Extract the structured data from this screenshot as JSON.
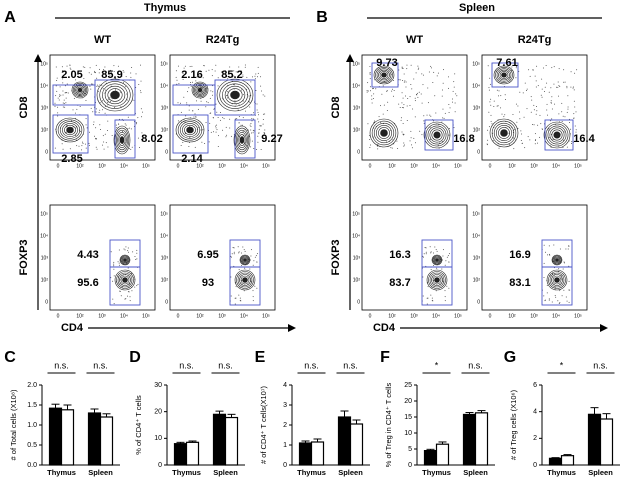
{
  "flow": {
    "axis_ticks": [
      "0",
      "10²",
      "10³",
      "10⁴",
      "10⁵"
    ],
    "x_label": "CD4",
    "y_labels": [
      "CD8",
      "FOXP3"
    ],
    "panels": [
      {
        "letter": "A",
        "tissue": "Thymus",
        "genotypes": [
          "WT",
          "R24Tg"
        ],
        "cd8_gates": [
          [
            2.05,
            85.9,
            2.85,
            8.02
          ],
          [
            2.16,
            85.2,
            2.14,
            9.27
          ]
        ],
        "foxp3_gates": [
          [
            4.43,
            95.6
          ],
          [
            6.95,
            93
          ]
        ]
      },
      {
        "letter": "B",
        "tissue": "Spleen",
        "genotypes": [
          "WT",
          "R24Tg"
        ],
        "cd8_gates": [
          [
            9.73,
            16.8
          ],
          [
            7.61,
            16.4
          ]
        ],
        "foxp3_gates": [
          [
            16.3,
            83.7
          ],
          [
            16.9,
            83.1
          ]
        ]
      }
    ]
  },
  "chart_data": [
    {
      "type": "bar",
      "panel": "C",
      "ylabel": "# of Total cells (X10⁸)",
      "categories": [
        "Thymus",
        "Spleen"
      ],
      "series": [
        {
          "color": "#000000",
          "values": [
            1.42,
            1.3
          ],
          "errors": [
            0.1,
            0.1
          ]
        },
        {
          "color": "#ffffff",
          "values": [
            1.38,
            1.2
          ],
          "errors": [
            0.12,
            0.08
          ]
        }
      ],
      "annotations": [
        "n.s.",
        "n.s."
      ],
      "ylim": [
        0,
        2
      ],
      "yticks": [
        {
          "value": 0,
          "label": "0.0"
        },
        {
          "value": 0.5,
          "label": "0.5"
        },
        {
          "value": 1,
          "label": "1.0"
        },
        {
          "value": 1.5,
          "label": "1.5"
        },
        {
          "value": 2,
          "label": "2.0"
        }
      ]
    },
    {
      "type": "bar",
      "panel": "D",
      "ylabel": "% of CD4⁺ T cells",
      "categories": [
        "Thymus",
        "Spleen"
      ],
      "series": [
        {
          "color": "#000000",
          "values": [
            8,
            19
          ],
          "errors": [
            0.5,
            1.2
          ]
        },
        {
          "color": "#ffffff",
          "values": [
            8.5,
            17.8
          ],
          "errors": [
            0.5,
            1.2
          ]
        }
      ],
      "annotations": [
        "n.s.",
        "n.s."
      ],
      "ylim": [
        0,
        30
      ],
      "yticks": [
        0,
        10,
        20,
        30
      ]
    },
    {
      "type": "bar",
      "panel": "E",
      "ylabel": "# of CD4⁺ T cells(X10⁷)",
      "categories": [
        "Thymus",
        "Spleen"
      ],
      "series": [
        {
          "color": "#000000",
          "values": [
            1.1,
            2.4
          ],
          "errors": [
            0.1,
            0.3
          ]
        },
        {
          "color": "#ffffff",
          "values": [
            1.15,
            2.05
          ],
          "errors": [
            0.15,
            0.2
          ]
        }
      ],
      "annotations": [
        "n.s.",
        "n.s."
      ],
      "ylim": [
        0,
        4
      ],
      "yticks": [
        0,
        1,
        2,
        3,
        4
      ]
    },
    {
      "type": "bar",
      "panel": "F",
      "ylabel": "% of Treg in CD4⁺ T cells",
      "categories": [
        "Thymus",
        "Spleen"
      ],
      "series": [
        {
          "color": "#000000",
          "values": [
            4.5,
            15.8
          ],
          "errors": [
            0.4,
            0.6
          ]
        },
        {
          "color": "#ffffff",
          "values": [
            6.5,
            16.3
          ],
          "errors": [
            0.7,
            0.7
          ]
        }
      ],
      "annotations": [
        "*",
        "n.s."
      ],
      "ylim": [
        0,
        25
      ],
      "yticks": [
        0,
        5,
        10,
        15,
        20,
        25
      ]
    },
    {
      "type": "bar",
      "panel": "G",
      "ylabel": "# of Treg cells (X10⁶)",
      "categories": [
        "Thymus",
        "Spleen"
      ],
      "series": [
        {
          "color": "#000000",
          "values": [
            0.5,
            3.8
          ],
          "errors": [
            0.05,
            0.5
          ]
        },
        {
          "color": "#ffffff",
          "values": [
            0.7,
            3.45
          ],
          "errors": [
            0.08,
            0.4
          ]
        }
      ],
      "annotations": [
        "*",
        "n.s."
      ],
      "ylim": [
        0,
        6
      ],
      "yticks": [
        0,
        2,
        4,
        6
      ]
    }
  ]
}
